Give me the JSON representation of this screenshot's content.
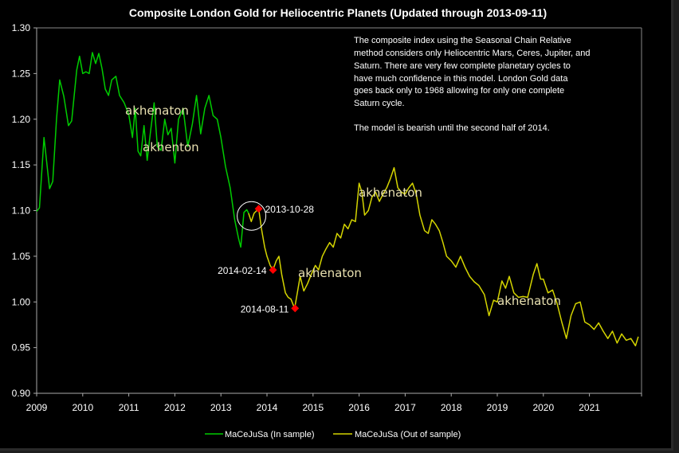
{
  "chart_data": {
    "type": "line",
    "title": "Composite London Gold for Heliocentric Planets (Updated through 2013-09-11)",
    "xlabel": "",
    "ylabel": "",
    "xlim": [
      2009,
      2022.1
    ],
    "ylim": [
      0.9,
      1.3
    ],
    "x_ticks": [
      "2009",
      "2010",
      "2011",
      "2012",
      "2013",
      "2014",
      "2015",
      "2016",
      "2017",
      "2018",
      "2019",
      "2020",
      "2021"
    ],
    "y_ticks": [
      "0.90",
      "0.95",
      "1.00",
      "1.05",
      "1.10",
      "1.15",
      "1.20",
      "1.25",
      "1.30"
    ],
    "grid": false,
    "legend_position": "bottom-center",
    "series": [
      {
        "name": "MaCeJuSa (In sample)",
        "color": "#00cc00",
        "points": [
          [
            2009.0,
            1.099
          ],
          [
            2009.06,
            1.103
          ],
          [
            2009.16,
            1.18
          ],
          [
            2009.21,
            1.157
          ],
          [
            2009.28,
            1.124
          ],
          [
            2009.35,
            1.132
          ],
          [
            2009.43,
            1.2
          ],
          [
            2009.5,
            1.243
          ],
          [
            2009.59,
            1.225
          ],
          [
            2009.69,
            1.193
          ],
          [
            2009.76,
            1.198
          ],
          [
            2009.87,
            1.254
          ],
          [
            2009.93,
            1.269
          ],
          [
            2010.0,
            1.25
          ],
          [
            2010.07,
            1.252
          ],
          [
            2010.14,
            1.25
          ],
          [
            2010.21,
            1.273
          ],
          [
            2010.28,
            1.261
          ],
          [
            2010.35,
            1.272
          ],
          [
            2010.42,
            1.255
          ],
          [
            2010.49,
            1.233
          ],
          [
            2010.56,
            1.226
          ],
          [
            2010.63,
            1.243
          ],
          [
            2010.72,
            1.247
          ],
          [
            2010.8,
            1.226
          ],
          [
            2010.9,
            1.218
          ],
          [
            2011.0,
            1.205
          ],
          [
            2011.08,
            1.18
          ],
          [
            2011.14,
            1.212
          ],
          [
            2011.2,
            1.165
          ],
          [
            2011.26,
            1.16
          ],
          [
            2011.33,
            1.193
          ],
          [
            2011.4,
            1.155
          ],
          [
            2011.47,
            1.186
          ],
          [
            2011.55,
            1.218
          ],
          [
            2011.62,
            1.17
          ],
          [
            2011.7,
            1.166
          ],
          [
            2011.78,
            1.2
          ],
          [
            2011.85,
            1.183
          ],
          [
            2011.92,
            1.19
          ],
          [
            2012.0,
            1.152
          ],
          [
            2012.08,
            1.2
          ],
          [
            2012.18,
            1.212
          ],
          [
            2012.28,
            1.17
          ],
          [
            2012.38,
            1.195
          ],
          [
            2012.47,
            1.226
          ],
          [
            2012.56,
            1.184
          ],
          [
            2012.65,
            1.212
          ],
          [
            2012.74,
            1.226
          ],
          [
            2012.83,
            1.204
          ],
          [
            2012.92,
            1.2
          ],
          [
            2013.0,
            1.18
          ],
          [
            2013.1,
            1.148
          ],
          [
            2013.2,
            1.125
          ],
          [
            2013.3,
            1.09
          ],
          [
            2013.38,
            1.07
          ],
          [
            2013.43,
            1.06
          ],
          [
            2013.5,
            1.098
          ],
          [
            2013.56,
            1.101
          ],
          [
            2013.6,
            1.097
          ]
        ]
      },
      {
        "name": "MaCeJuSa (Out of sample)",
        "color": "#d4d400",
        "points": [
          [
            2013.6,
            1.097
          ],
          [
            2013.66,
            1.088
          ],
          [
            2013.72,
            1.097
          ],
          [
            2013.82,
            1.102
          ],
          [
            2013.88,
            1.08
          ],
          [
            2013.95,
            1.06
          ],
          [
            2014.0,
            1.05
          ],
          [
            2014.07,
            1.04
          ],
          [
            2014.13,
            1.035
          ],
          [
            2014.2,
            1.045
          ],
          [
            2014.26,
            1.05
          ],
          [
            2014.32,
            1.03
          ],
          [
            2014.4,
            1.01
          ],
          [
            2014.46,
            1.005
          ],
          [
            2014.52,
            1.003
          ],
          [
            2014.6,
            0.993
          ],
          [
            2014.66,
            1.01
          ],
          [
            2014.72,
            1.028
          ],
          [
            2014.8,
            1.012
          ],
          [
            2014.88,
            1.02
          ],
          [
            2014.96,
            1.03
          ],
          [
            2015.05,
            1.04
          ],
          [
            2015.12,
            1.035
          ],
          [
            2015.2,
            1.05
          ],
          [
            2015.28,
            1.058
          ],
          [
            2015.36,
            1.065
          ],
          [
            2015.44,
            1.06
          ],
          [
            2015.52,
            1.075
          ],
          [
            2015.6,
            1.07
          ],
          [
            2015.68,
            1.085
          ],
          [
            2015.76,
            1.08
          ],
          [
            2015.84,
            1.09
          ],
          [
            2015.92,
            1.088
          ],
          [
            2016.0,
            1.13
          ],
          [
            2016.06,
            1.12
          ],
          [
            2016.12,
            1.095
          ],
          [
            2016.2,
            1.1
          ],
          [
            2016.28,
            1.115
          ],
          [
            2016.36,
            1.12
          ],
          [
            2016.44,
            1.11
          ],
          [
            2016.52,
            1.118
          ],
          [
            2016.6,
            1.125
          ],
          [
            2016.68,
            1.135
          ],
          [
            2016.76,
            1.147
          ],
          [
            2016.84,
            1.125
          ],
          [
            2016.92,
            1.12
          ],
          [
            2017.0,
            1.118
          ],
          [
            2017.08,
            1.125
          ],
          [
            2017.16,
            1.13
          ],
          [
            2017.24,
            1.118
          ],
          [
            2017.32,
            1.095
          ],
          [
            2017.42,
            1.078
          ],
          [
            2017.5,
            1.075
          ],
          [
            2017.58,
            1.09
          ],
          [
            2017.66,
            1.085
          ],
          [
            2017.74,
            1.078
          ],
          [
            2017.82,
            1.065
          ],
          [
            2017.9,
            1.05
          ],
          [
            2018.0,
            1.045
          ],
          [
            2018.1,
            1.038
          ],
          [
            2018.2,
            1.05
          ],
          [
            2018.3,
            1.038
          ],
          [
            2018.4,
            1.028
          ],
          [
            2018.5,
            1.022
          ],
          [
            2018.6,
            1.018
          ],
          [
            2018.72,
            1.008
          ],
          [
            2018.82,
            0.985
          ],
          [
            2018.92,
            1.002
          ],
          [
            2019.0,
            1.0
          ],
          [
            2019.1,
            1.023
          ],
          [
            2019.18,
            1.015
          ],
          [
            2019.26,
            1.028
          ],
          [
            2019.36,
            1.01
          ],
          [
            2019.46,
            1.005
          ],
          [
            2019.56,
            1.006
          ],
          [
            2019.66,
            1.005
          ],
          [
            2019.78,
            1.03
          ],
          [
            2019.86,
            1.042
          ],
          [
            2019.94,
            1.025
          ],
          [
            2020.0,
            1.025
          ],
          [
            2020.1,
            1.01
          ],
          [
            2020.2,
            1.013
          ],
          [
            2020.3,
            0.998
          ],
          [
            2020.4,
            0.978
          ],
          [
            2020.5,
            0.96
          ],
          [
            2020.6,
            0.985
          ],
          [
            2020.7,
            0.998
          ],
          [
            2020.8,
            1.0
          ],
          [
            2020.9,
            0.978
          ],
          [
            2021.0,
            0.975
          ],
          [
            2021.1,
            0.97
          ],
          [
            2021.2,
            0.977
          ],
          [
            2021.3,
            0.968
          ],
          [
            2021.4,
            0.96
          ],
          [
            2021.5,
            0.968
          ],
          [
            2021.6,
            0.955
          ],
          [
            2021.7,
            0.965
          ],
          [
            2021.8,
            0.958
          ],
          [
            2021.9,
            0.96
          ],
          [
            2022.0,
            0.952
          ],
          [
            2022.06,
            0.962
          ]
        ]
      }
    ],
    "markers": [
      {
        "label": "2013-10-28",
        "x": 2013.82,
        "y": 1.102,
        "color": "#ff0000"
      },
      {
        "label": "2014-02-14",
        "x": 2014.13,
        "y": 1.035,
        "color": "#ff0000"
      },
      {
        "label": "2014-08-11",
        "x": 2014.61,
        "y": 0.993,
        "color": "#ff0000"
      }
    ],
    "annotations": [
      "The composite index using the Seasonal Chain Relative",
      "method considers only Heliocentric Mars, Ceres, Jupiter, and",
      "Saturn.  There are very few complete planetary cycles to",
      "have much confidence in this model.  London Gold data",
      "goes back only to 1968 allowing for only one complete",
      "Saturn cycle.",
      "",
      "The model is bearish until the second half of 2014."
    ],
    "watermarks": [
      "akhenaton",
      "akhenton",
      "akhenaton",
      "akhenaton",
      "akhenaton"
    ]
  }
}
